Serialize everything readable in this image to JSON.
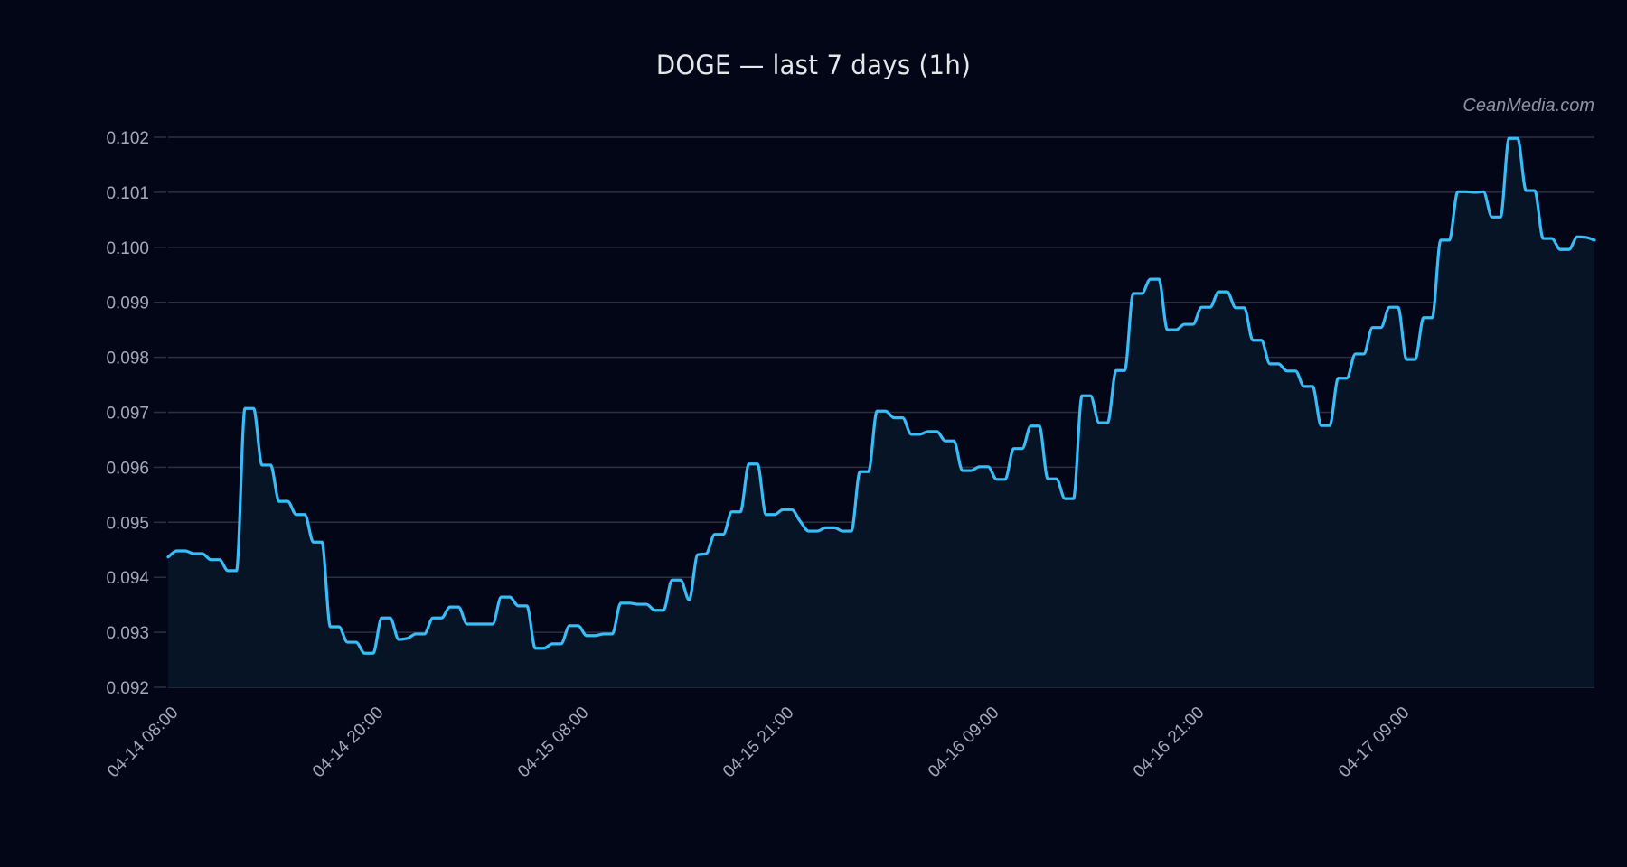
{
  "title": "DOGE — last 7 days (1h)",
  "watermark": "CeanMedia.com",
  "colors": {
    "background": "#030617",
    "line": "#38bdf8",
    "fill": "#071426",
    "grid": "#2a3140",
    "tick_text": "#a3a9b6"
  },
  "chart_data": {
    "type": "area",
    "title": "DOGE — last 7 days (1h)",
    "xlabel": "",
    "ylabel": "",
    "ylim": [
      0.092,
      0.102
    ],
    "grid": true,
    "legend": null,
    "y_ticks": [
      "0.092",
      "0.093",
      "0.094",
      "0.095",
      "0.096",
      "0.097",
      "0.098",
      "0.099",
      "0.100",
      "0.101",
      "0.102"
    ],
    "x_tick_labels": [
      "04-14 08:00",
      "04-14 20:00",
      "04-15 08:00",
      "04-15 21:00",
      "04-16 09:00",
      "04-16 21:00",
      "04-17 09:00"
    ],
    "series": [
      {
        "name": "DOGE",
        "values": [
          0.09437,
          0.09448,
          0.09448,
          0.09443,
          0.09443,
          0.09432,
          0.09432,
          0.09412,
          0.09412,
          0.09707,
          0.09707,
          0.09604,
          0.09604,
          0.09538,
          0.09538,
          0.09514,
          0.09514,
          0.09464,
          0.09464,
          0.0931,
          0.0931,
          0.09282,
          0.09282,
          0.09262,
          0.09262,
          0.09326,
          0.09326,
          0.09287,
          0.09289,
          0.09297,
          0.09297,
          0.09326,
          0.09326,
          0.09346,
          0.09346,
          0.09315,
          0.09315,
          0.09315,
          0.09315,
          0.09364,
          0.09364,
          0.09348,
          0.09348,
          0.09271,
          0.09271,
          0.09279,
          0.09279,
          0.09312,
          0.09312,
          0.09294,
          0.09294,
          0.09297,
          0.09297,
          0.09353,
          0.09353,
          0.09351,
          0.09351,
          0.0934,
          0.0934,
          0.09395,
          0.09395,
          0.09359,
          0.09441,
          0.09443,
          0.09478,
          0.09478,
          0.09519,
          0.09519,
          0.09606,
          0.09606,
          0.09514,
          0.09514,
          0.09523,
          0.09523,
          0.09502,
          0.09484,
          0.09484,
          0.0949,
          0.0949,
          0.09484,
          0.09484,
          0.09592,
          0.09592,
          0.09702,
          0.09702,
          0.0969,
          0.0969,
          0.0966,
          0.0966,
          0.09665,
          0.09665,
          0.09648,
          0.09648,
          0.09594,
          0.09594,
          0.09601,
          0.09601,
          0.09578,
          0.09578,
          0.09634,
          0.09634,
          0.09675,
          0.09675,
          0.09579,
          0.09579,
          0.09543,
          0.09543,
          0.0973,
          0.0973,
          0.09681,
          0.09681,
          0.09776,
          0.09776,
          0.09916,
          0.09916,
          0.09942,
          0.09942,
          0.0985,
          0.0985,
          0.0986,
          0.0986,
          0.09891,
          0.09891,
          0.09919,
          0.09919,
          0.0989,
          0.0989,
          0.09831,
          0.09831,
          0.09788,
          0.09788,
          0.09775,
          0.09775,
          0.09747,
          0.09747,
          0.09676,
          0.09676,
          0.09762,
          0.09762,
          0.09806,
          0.09806,
          0.09854,
          0.09854,
          0.09891,
          0.09891,
          0.09796,
          0.09796,
          0.09872,
          0.09872,
          0.10013,
          0.10013,
          0.10101,
          0.10101,
          0.101,
          0.10101,
          0.10055,
          0.10055,
          0.10198,
          0.10198,
          0.10103,
          0.10103,
          0.10016,
          0.10016,
          0.09996,
          0.09996,
          0.10019,
          0.10018,
          0.10013
        ]
      }
    ]
  }
}
